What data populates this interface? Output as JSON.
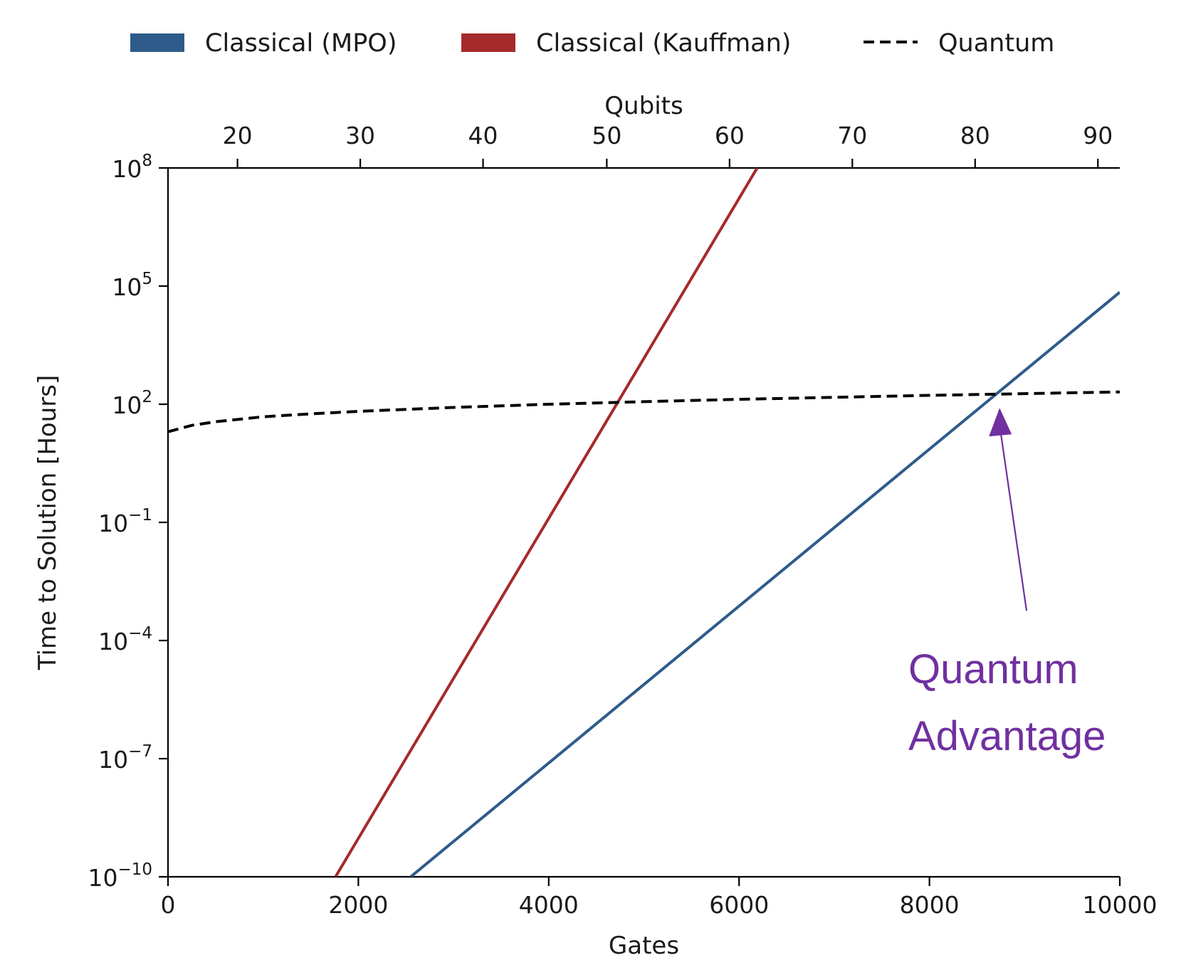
{
  "chart_data": {
    "type": "line",
    "yscale": "log",
    "xlabel": "Gates",
    "ylabel": "Time to Solution [Hours]",
    "top_axis_label": "Qubits",
    "xlim": [
      0,
      10000
    ],
    "ylim": [
      1e-10,
      100000000.0
    ],
    "x_ticks": [
      0,
      2000,
      4000,
      6000,
      8000,
      10000
    ],
    "x_tick_labels": [
      "0",
      "2000",
      "4000",
      "6000",
      "8000",
      "10000"
    ],
    "y_ticks": [
      1e-10,
      1e-07,
      0.0001,
      0.1,
      100.0,
      100000.0,
      100000000.0
    ],
    "y_tick_labels": [
      {
        "base": "10",
        "exp": "−10"
      },
      {
        "base": "10",
        "exp": "−7"
      },
      {
        "base": "10",
        "exp": "−4"
      },
      {
        "base": "10",
        "exp": "−1"
      },
      {
        "base": "10",
        "exp": "2"
      },
      {
        "base": "10",
        "exp": "5"
      },
      {
        "base": "10",
        "exp": "8"
      }
    ],
    "top_ticks": {
      "labels": [
        "20",
        "30",
        "40",
        "50",
        "60",
        "70",
        "80",
        "90"
      ],
      "gates": [
        730,
        2020,
        3310,
        4610,
        5900,
        7190,
        8480,
        9770
      ]
    },
    "series": [
      {
        "name": "Classical (MPO)",
        "color": "#2e5b8a",
        "style": "solid",
        "points": [
          [
            2550,
            1e-10
          ],
          [
            10000,
            70000.0
          ]
        ]
      },
      {
        "name": "Classical (Kauffman)",
        "color": "#a52a2a",
        "style": "solid",
        "points": [
          [
            1760,
            1e-10
          ],
          [
            6190,
            100000000.0
          ]
        ]
      },
      {
        "name": "Quantum",
        "color": "#000000",
        "style": "dashed",
        "points": [
          [
            0,
            20
          ],
          [
            250,
            29
          ],
          [
            500,
            36
          ],
          [
            1000,
            48
          ],
          [
            1500,
            57
          ],
          [
            2000,
            66
          ],
          [
            3000,
            83
          ],
          [
            4000,
            100
          ],
          [
            5000,
            116
          ],
          [
            6000,
            133
          ],
          [
            7000,
            150
          ],
          [
            8000,
            168
          ],
          [
            8700,
            180
          ],
          [
            9000,
            186
          ],
          [
            10000,
            205
          ]
        ]
      }
    ],
    "legend": {
      "placement": "top",
      "entries": [
        {
          "label": "Classical (MPO)",
          "color": "#2e5b8a",
          "marker": "patch"
        },
        {
          "label": "Classical (Kauffman)",
          "color": "#a52a2a",
          "marker": "patch"
        },
        {
          "label": "Quantum",
          "color": "#000000",
          "marker": "dashed-line"
        }
      ]
    },
    "annotation": {
      "lines": [
        "Quantum",
        "Advantage"
      ],
      "color": "#7030a0",
      "points_to": [
        8700,
        170
      ]
    }
  }
}
